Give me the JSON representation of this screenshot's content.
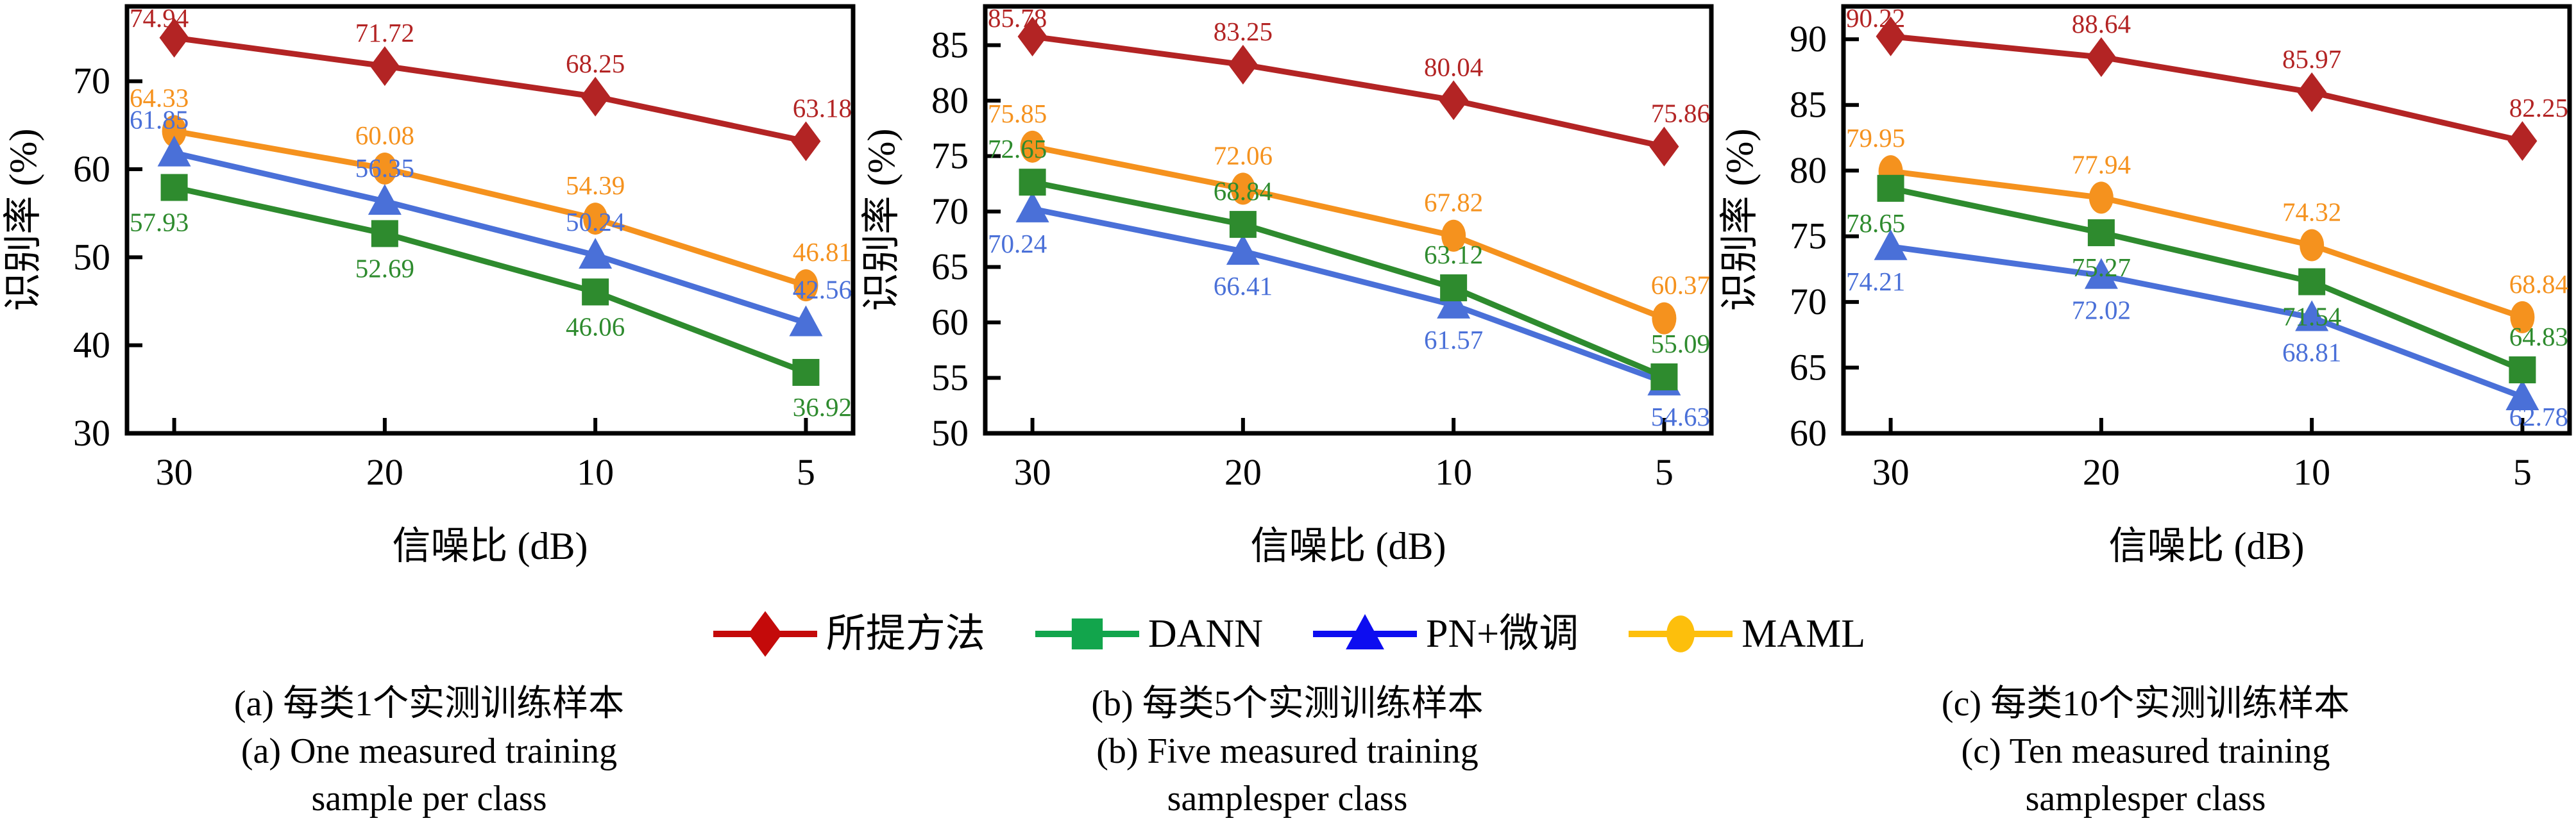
{
  "figure": {
    "xlabel": "信噪比 (dB)",
    "ylabel": "识别率 (%)"
  },
  "legend": {
    "position": "bottom-center",
    "items": [
      {
        "label": "所提方法",
        "marker": "diamond",
        "color": "#c40a0a"
      },
      {
        "label": "DANN",
        "marker": "square",
        "color": "#12a54c"
      },
      {
        "label": "PN+微调",
        "marker": "triangle",
        "color": "#0d0df0"
      },
      {
        "label": "MAML",
        "marker": "circle",
        "color": "#fdbf0c"
      }
    ]
  },
  "chart_data": [
    {
      "id": "a",
      "type": "line",
      "categories": [
        "30",
        "20",
        "10",
        "5"
      ],
      "xlabel": "信噪比 (dB)",
      "ylabel": "识别率 (%)",
      "ylim": [
        30,
        78.5
      ],
      "yticks": [
        30,
        40,
        50,
        60,
        70
      ],
      "grid": false,
      "series": [
        {
          "name": "MAML",
          "color": "#f5921e",
          "marker": "circle",
          "values": [
            64.33,
            60.08,
            54.39,
            46.81
          ],
          "label_side": [
            "above",
            "above",
            "above",
            "above"
          ]
        },
        {
          "name": "PN+微调",
          "color": "#4a70d8",
          "marker": "triangle",
          "values": [
            61.85,
            56.35,
            50.24,
            42.56
          ],
          "label_side": [
            "above",
            "above",
            "above",
            "above"
          ]
        },
        {
          "name": "DANN",
          "color": "#2e8b2e",
          "marker": "square",
          "values": [
            57.93,
            52.69,
            46.06,
            36.92
          ],
          "label_side": [
            "below",
            "below",
            "below",
            "below"
          ]
        },
        {
          "name": "所提方法",
          "color": "#b32424",
          "marker": "diamond",
          "values": [
            74.94,
            71.72,
            68.25,
            63.18
          ],
          "label_side": [
            "above",
            "above",
            "above",
            "above"
          ]
        }
      ],
      "caption_zh": "(a) 每类1个实测训练样本",
      "caption_en_line1": "(a) One measured training",
      "caption_en_line2": "sample per class"
    },
    {
      "id": "b",
      "type": "line",
      "categories": [
        "30",
        "20",
        "10",
        "5"
      ],
      "xlabel": "信噪比 (dB)",
      "ylabel": "识别率 (%)",
      "ylim": [
        50,
        88.5
      ],
      "yticks": [
        50,
        55,
        60,
        65,
        70,
        75,
        80,
        85
      ],
      "grid": false,
      "series": [
        {
          "name": "MAML",
          "color": "#f5921e",
          "marker": "circle",
          "values": [
            75.85,
            72.06,
            67.82,
            60.37
          ],
          "label_side": [
            "above",
            "above",
            "above",
            "above"
          ]
        },
        {
          "name": "PN+微调",
          "color": "#4a70d8",
          "marker": "triangle",
          "values": [
            70.24,
            66.41,
            61.57,
            54.63
          ],
          "label_side": [
            "below",
            "below",
            "below",
            "below"
          ]
        },
        {
          "name": "DANN",
          "color": "#2e8b2e",
          "marker": "square",
          "values": [
            72.65,
            68.84,
            63.12,
            55.09
          ],
          "label_side": [
            "above",
            "above",
            "above",
            "above"
          ]
        },
        {
          "name": "所提方法",
          "color": "#b32424",
          "marker": "diamond",
          "values": [
            85.78,
            83.25,
            80.04,
            75.86
          ],
          "label_side": [
            "above",
            "above",
            "above",
            "above"
          ]
        }
      ],
      "caption_zh": "(b) 每类5个实测训练样本",
      "caption_en_line1": "(b) Five measured training",
      "caption_en_line2": "samplesper class"
    },
    {
      "id": "c",
      "type": "line",
      "categories": [
        "30",
        "20",
        "10",
        "5"
      ],
      "xlabel": "信噪比 (dB)",
      "ylabel": "识别率 (%)",
      "ylim": [
        60,
        92.5
      ],
      "yticks": [
        60,
        65,
        70,
        75,
        80,
        85,
        90
      ],
      "grid": false,
      "series": [
        {
          "name": "MAML",
          "color": "#f5921e",
          "marker": "circle",
          "values": [
            79.95,
            77.94,
            74.32,
            68.84
          ],
          "label_side": [
            "above",
            "above",
            "above",
            "above"
          ]
        },
        {
          "name": "PN+微调",
          "color": "#4a70d8",
          "marker": "triangle",
          "values": [
            74.21,
            72.02,
            68.81,
            62.78
          ],
          "label_side": [
            "below",
            "below",
            "below",
            "below"
          ]
        },
        {
          "name": "DANN",
          "color": "#2e8b2e",
          "marker": "square",
          "values": [
            78.65,
            75.27,
            71.54,
            64.83
          ],
          "label_side": [
            "below",
            "below",
            "below",
            "above"
          ]
        },
        {
          "name": "所提方法",
          "color": "#b32424",
          "marker": "diamond",
          "values": [
            90.22,
            88.64,
            85.97,
            82.25
          ],
          "label_side": [
            "above",
            "above",
            "above",
            "above"
          ]
        }
      ],
      "caption_zh": "(c) 每类10个实测训练样本",
      "caption_en_line1": "(c) Ten measured training",
      "caption_en_line2": "samplesper class"
    }
  ]
}
